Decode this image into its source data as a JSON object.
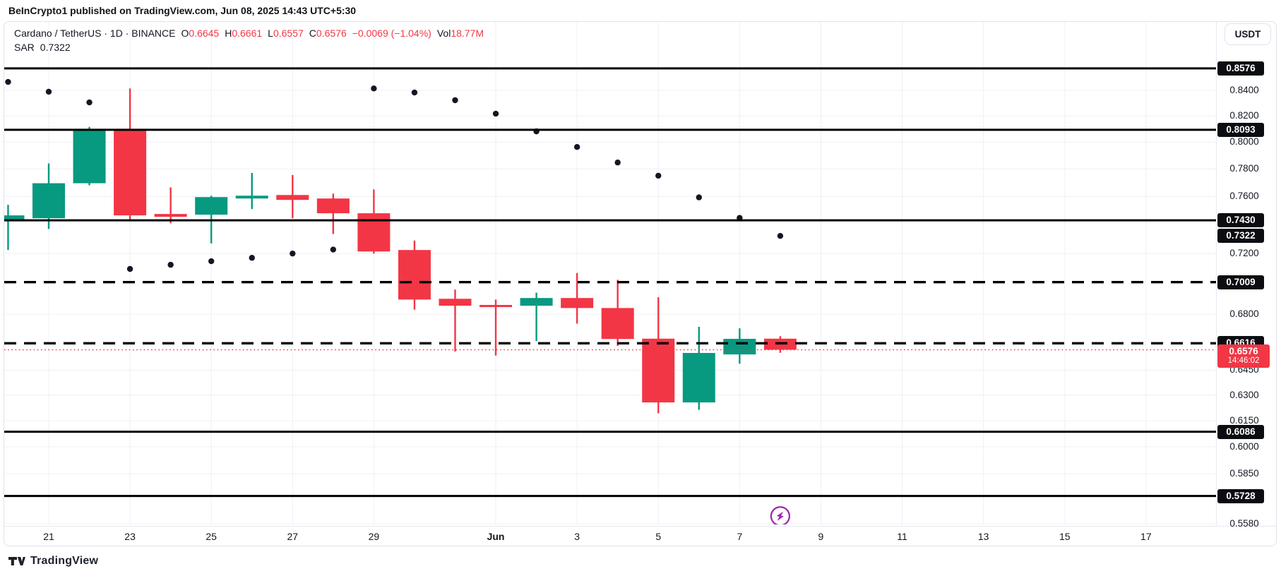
{
  "attribution": "BeInCrypto1 published on TradingView.com, Jun 08, 2025 14:43 UTC+5:30",
  "legend": {
    "title": "Cardano / TetherUS · 1D · BINANCE",
    "ohlc": [
      {
        "label": "O",
        "value": "0.6645"
      },
      {
        "label": "H",
        "value": "0.6661"
      },
      {
        "label": "L",
        "value": "0.6557"
      },
      {
        "label": "C",
        "value": "0.6576"
      }
    ],
    "change": "−0.0069 (−1.04%)",
    "vol_label": "Vol",
    "vol_value": "18.77M",
    "indicator": {
      "name": "SAR",
      "value": "0.7322"
    }
  },
  "axis": {
    "currency_button": "USDT"
  },
  "logo": {
    "text": "TradingView"
  },
  "colors": {
    "up": "#089981",
    "down": "#f23645",
    "grid": "#eef0f6",
    "line_black": "#000000",
    "badge_bg": "#0b0d12",
    "purple": "#9c27b0",
    "text": "#131722",
    "border": "#e0e3eb"
  },
  "chart_data": {
    "type": "candlestick",
    "title": "Cardano / TetherUS",
    "interval": "1D",
    "exchange": "BINANCE",
    "scale": "log",
    "ylim": [
      0.5568,
      0.8754
    ],
    "dates": [
      "May 20",
      "May 21",
      "May 22",
      "May 23",
      "May 24",
      "May 25",
      "May 26",
      "May 27",
      "May 28",
      "May 29",
      "May 30",
      "May 31",
      "Jun 1",
      "Jun 2",
      "Jun 3",
      "Jun 4",
      "Jun 5",
      "Jun 6",
      "Jun 7",
      "Jun 8"
    ],
    "open": [
      0.7435,
      0.7445,
      0.7695,
      0.809,
      0.7475,
      0.747,
      0.7585,
      0.761,
      0.7585,
      0.748,
      0.7225,
      0.69,
      0.686,
      0.6855,
      0.6905,
      0.684,
      0.6645,
      0.6257,
      0.6547,
      0.6645
    ],
    "high": [
      0.754,
      0.784,
      0.8115,
      0.8415,
      0.7665,
      0.7605,
      0.777,
      0.7755,
      0.762,
      0.765,
      0.729,
      0.696,
      0.6895,
      0.694,
      0.707,
      0.7025,
      0.691,
      0.672,
      0.671,
      0.6661
    ],
    "low": [
      0.7225,
      0.737,
      0.768,
      0.743,
      0.741,
      0.727,
      0.751,
      0.7445,
      0.7335,
      0.72,
      0.683,
      0.6565,
      0.654,
      0.663,
      0.674,
      0.66,
      0.6193,
      0.6214,
      0.649,
      0.6557
    ],
    "close": [
      0.7465,
      0.7695,
      0.809,
      0.7465,
      0.7455,
      0.7595,
      0.7605,
      0.7575,
      0.748,
      0.7215,
      0.6895,
      0.6855,
      0.6855,
      0.6905,
      0.684,
      0.6643,
      0.6257,
      0.6556,
      0.6644,
      0.6576
    ],
    "sar": [
      0.8467,
      0.8389,
      0.8305,
      0.7097,
      0.7125,
      0.7149,
      0.7172,
      0.7201,
      0.7228,
      0.8415,
      0.8383,
      0.8322,
      0.8217,
      0.8081,
      0.7963,
      0.7847,
      0.775,
      0.7593,
      0.7447,
      0.7322
    ],
    "sar_current": 0.7322,
    "y_ticks": [
      {
        "label": "0.8400",
        "price": 0.84
      },
      {
        "label": "0.8200",
        "price": 0.82
      },
      {
        "label": "0.8000",
        "price": 0.8
      },
      {
        "label": "0.7800",
        "price": 0.78
      },
      {
        "label": "0.7600",
        "price": 0.76
      },
      {
        "label": "0.7200",
        "price": 0.72
      },
      {
        "label": "0.6800",
        "price": 0.68
      },
      {
        "label": "0.6450",
        "price": 0.645
      },
      {
        "label": "0.6300",
        "price": 0.63
      },
      {
        "label": "0.6150",
        "price": 0.615
      },
      {
        "label": "0.6000",
        "price": 0.6
      },
      {
        "label": "0.5850",
        "price": 0.585
      },
      {
        "label": "0.5580",
        "price": 0.558
      }
    ],
    "x_ticks": [
      {
        "label": "21",
        "index": 1
      },
      {
        "label": "23",
        "index": 3
      },
      {
        "label": "25",
        "index": 5
      },
      {
        "label": "27",
        "index": 7
      },
      {
        "label": "29",
        "index": 9
      },
      {
        "label": "Jun",
        "index": 12,
        "bold": true
      },
      {
        "label": "3",
        "index": 14
      },
      {
        "label": "5",
        "index": 16
      },
      {
        "label": "7",
        "index": 18
      },
      {
        "label": "9",
        "index": 20
      },
      {
        "label": "11",
        "index": 22
      },
      {
        "label": "13",
        "index": 24
      },
      {
        "label": "15",
        "index": 26
      },
      {
        "label": "17",
        "index": 28
      }
    ],
    "levels": {
      "solid": [
        {
          "label": "0.8576",
          "price": 0.8576
        },
        {
          "label": "0.8093",
          "price": 0.8093
        },
        {
          "label": "0.7430",
          "price": 0.743
        },
        {
          "label": "0.6086",
          "price": 0.6086
        },
        {
          "label": "0.5728",
          "price": 0.5728
        }
      ],
      "dashed": [
        {
          "label": "0.7009",
          "price": 0.7009
        },
        {
          "label": "0.6616",
          "price": 0.6616
        }
      ],
      "sar_badge": {
        "label": "0.7322",
        "price": 0.7322
      },
      "current": {
        "label": "0.6576",
        "time": "14:46:02",
        "price": 0.6576
      }
    },
    "marker": {
      "index": 19,
      "price": 0.562,
      "icon": "lightning-icon"
    }
  }
}
